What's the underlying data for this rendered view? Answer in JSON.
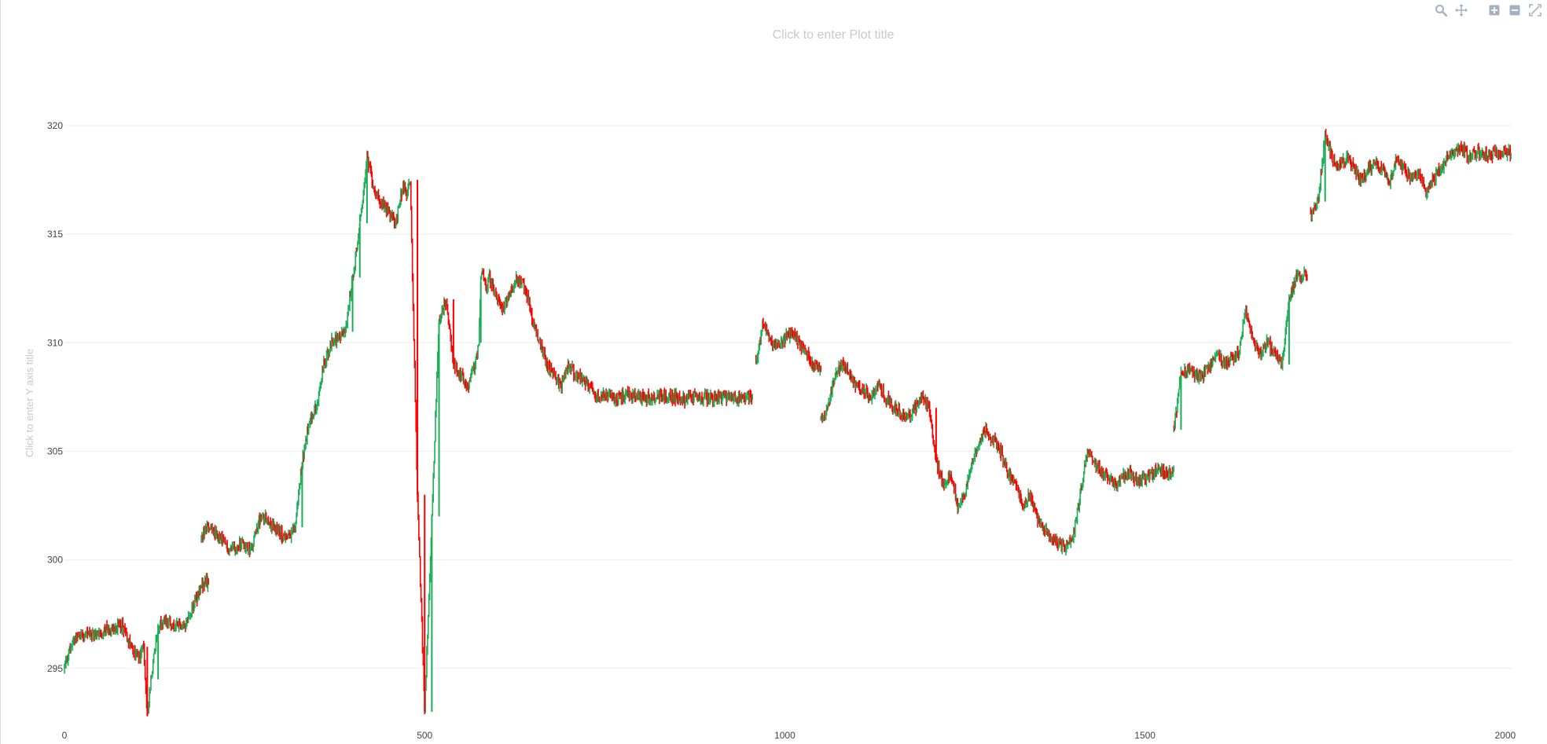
{
  "title_placeholder": "Click to enter Plot title",
  "yaxis_title_placeholder": "Click to enter Y axis title",
  "modebar": {
    "buttons": [
      {
        "name": "zoom",
        "icon": "zoom-icon"
      },
      {
        "name": "pan",
        "icon": "pan-icon"
      },
      {
        "name": "zoom-in",
        "icon": "zoom-in-icon"
      },
      {
        "name": "zoom-out",
        "icon": "zoom-out-icon"
      },
      {
        "name": "autoscale",
        "icon": "autoscale-icon"
      }
    ]
  },
  "colors": {
    "increasing": "#1aae55",
    "decreasing": "#ff0000",
    "grid": "#eeeeee",
    "tick_text": "#444444",
    "placeholder_text": "#c8c8c8",
    "modebar_icon": "#a3b1c2"
  },
  "chart_data": {
    "type": "candlestick",
    "title": "",
    "xlabel": "",
    "ylabel": "",
    "xlim": [
      0,
      2010
    ],
    "ylim": [
      292.5,
      320.5
    ],
    "x_ticks": [
      0,
      500,
      1000,
      1500,
      2000
    ],
    "x_tick_labels": [
      "0",
      "500",
      "1000",
      "1500",
      "2000"
    ],
    "y_ticks": [
      295,
      300,
      305,
      310,
      315,
      320
    ],
    "y_tick_labels": [
      "295",
      "300",
      "305",
      "310",
      "315",
      "320"
    ],
    "grid": "horizontal",
    "legend": "none",
    "series": [
      {
        "segment_x": [
          0,
          10,
          20,
          40,
          60,
          80,
          95,
          105,
          110,
          115,
          120,
          130,
          140,
          150,
          160,
          170,
          180,
          190,
          200
        ],
        "close": [
          295.0,
          296.2,
          296.6,
          296.5,
          296.8,
          297.0,
          295.8,
          295.6,
          296.0,
          292.8,
          294.5,
          297.0,
          297.2,
          296.9,
          297.0,
          297.1,
          298.0,
          298.8,
          299.0
        ]
      },
      {
        "segment_x": [
          190,
          200,
          215,
          230,
          245,
          260,
          270,
          280,
          290,
          300,
          310,
          320,
          330,
          340,
          350,
          360,
          370,
          380,
          390,
          400,
          410,
          420,
          430,
          440,
          450,
          460,
          465,
          470,
          475,
          480,
          490,
          500,
          510,
          520,
          530,
          540,
          550,
          560,
          570,
          575,
          578,
          580,
          582,
          585,
          590,
          600,
          610,
          620,
          630,
          640,
          650,
          660,
          670,
          680,
          690,
          700,
          710,
          720,
          730,
          740,
          750,
          760,
          770,
          780,
          790,
          800,
          810,
          820,
          830,
          840,
          850,
          860,
          870,
          880,
          890,
          900,
          910,
          920,
          930,
          940,
          955
        ],
        "close": [
          301.0,
          301.5,
          301.0,
          300.5,
          300.8,
          300.5,
          301.8,
          302.0,
          301.5,
          301.2,
          301.0,
          301.5,
          304.5,
          306.5,
          307.0,
          309.0,
          310.0,
          310.2,
          310.5,
          313.0,
          315.5,
          318.5,
          317.0,
          316.5,
          316.0,
          315.5,
          316.5,
          317.2,
          316.8,
          317.5,
          303.0,
          293.0,
          302.0,
          311.0,
          312.0,
          309.0,
          308.5,
          308.0,
          309.0,
          310.0,
          312.8,
          313.5,
          313.2,
          312.5,
          313.0,
          312.0,
          311.5,
          312.5,
          313.0,
          312.5,
          311.0,
          310.0,
          309.0,
          308.5,
          308.0,
          309.0,
          308.5,
          308.2,
          308.0,
          307.5,
          307.5,
          307.5,
          307.5,
          307.6,
          307.5,
          307.4,
          307.5,
          307.5,
          307.6,
          307.5,
          307.5,
          307.4,
          307.5,
          307.5,
          307.5,
          307.5,
          307.5,
          307.5,
          307.5,
          307.5,
          307.5
        ]
      },
      {
        "segment_x": [
          960,
          970,
          980,
          990,
          1000,
          1010,
          1020,
          1030,
          1040,
          1050
        ],
        "close": [
          309.0,
          311.0,
          310.0,
          309.8,
          310.2,
          310.5,
          310.0,
          309.5,
          309.0,
          308.8
        ]
      },
      {
        "segment_x": [
          1050,
          1060,
          1070,
          1080,
          1090,
          1100,
          1110,
          1120,
          1130,
          1140,
          1150,
          1160,
          1170,
          1180,
          1190,
          1200,
          1210,
          1220,
          1230,
          1240,
          1250,
          1260,
          1270,
          1280,
          1290,
          1300,
          1310,
          1320,
          1330,
          1340,
          1350,
          1360,
          1370,
          1380,
          1390,
          1400,
          1410,
          1420,
          1430,
          1440,
          1450,
          1460,
          1470,
          1480,
          1490,
          1500,
          1510,
          1520,
          1530,
          1540
        ],
        "close": [
          306.5,
          307.0,
          308.5,
          309.0,
          308.5,
          308.0,
          307.8,
          307.5,
          308.0,
          307.5,
          307.0,
          306.8,
          306.5,
          307.0,
          307.5,
          307.0,
          304.5,
          303.5,
          304.0,
          302.5,
          303.0,
          304.5,
          305.5,
          306.0,
          305.5,
          305.0,
          304.0,
          303.5,
          302.5,
          303.0,
          302.0,
          301.5,
          301.0,
          300.8,
          300.5,
          301.0,
          303.0,
          305.0,
          304.5,
          304.0,
          303.8,
          303.5,
          303.8,
          304.0,
          303.6,
          303.8,
          304.0,
          304.2,
          304.0,
          304.2
        ]
      },
      {
        "segment_x": [
          1540,
          1550,
          1560,
          1570,
          1580,
          1590,
          1600,
          1610,
          1620,
          1630,
          1640,
          1650,
          1660,
          1670,
          1680,
          1690,
          1700,
          1710,
          1720,
          1725
        ],
        "close": [
          306.0,
          308.5,
          308.8,
          308.5,
          308.5,
          309.0,
          309.5,
          309.0,
          309.2,
          309.5,
          311.5,
          310.0,
          309.5,
          310.0,
          309.5,
          309.0,
          312.0,
          313.0,
          313.2,
          313.0
        ]
      },
      {
        "segment_x": [
          1730,
          1740,
          1750,
          1760,
          1770,
          1780,
          1790,
          1800,
          1810,
          1820,
          1830,
          1840,
          1850,
          1860,
          1870,
          1880,
          1890,
          1900,
          1910,
          1920,
          1930,
          1940,
          1950,
          1960,
          1970,
          1980,
          1990,
          2000,
          2008
        ],
        "close": [
          315.8,
          316.5,
          319.5,
          318.5,
          318.2,
          318.5,
          318.0,
          317.5,
          318.0,
          318.3,
          318.0,
          317.5,
          318.5,
          318.0,
          317.5,
          317.8,
          317.0,
          317.5,
          318.0,
          318.5,
          318.8,
          319.0,
          318.5,
          318.8,
          318.7,
          318.6,
          318.8,
          318.9,
          318.6
        ]
      }
    ]
  }
}
